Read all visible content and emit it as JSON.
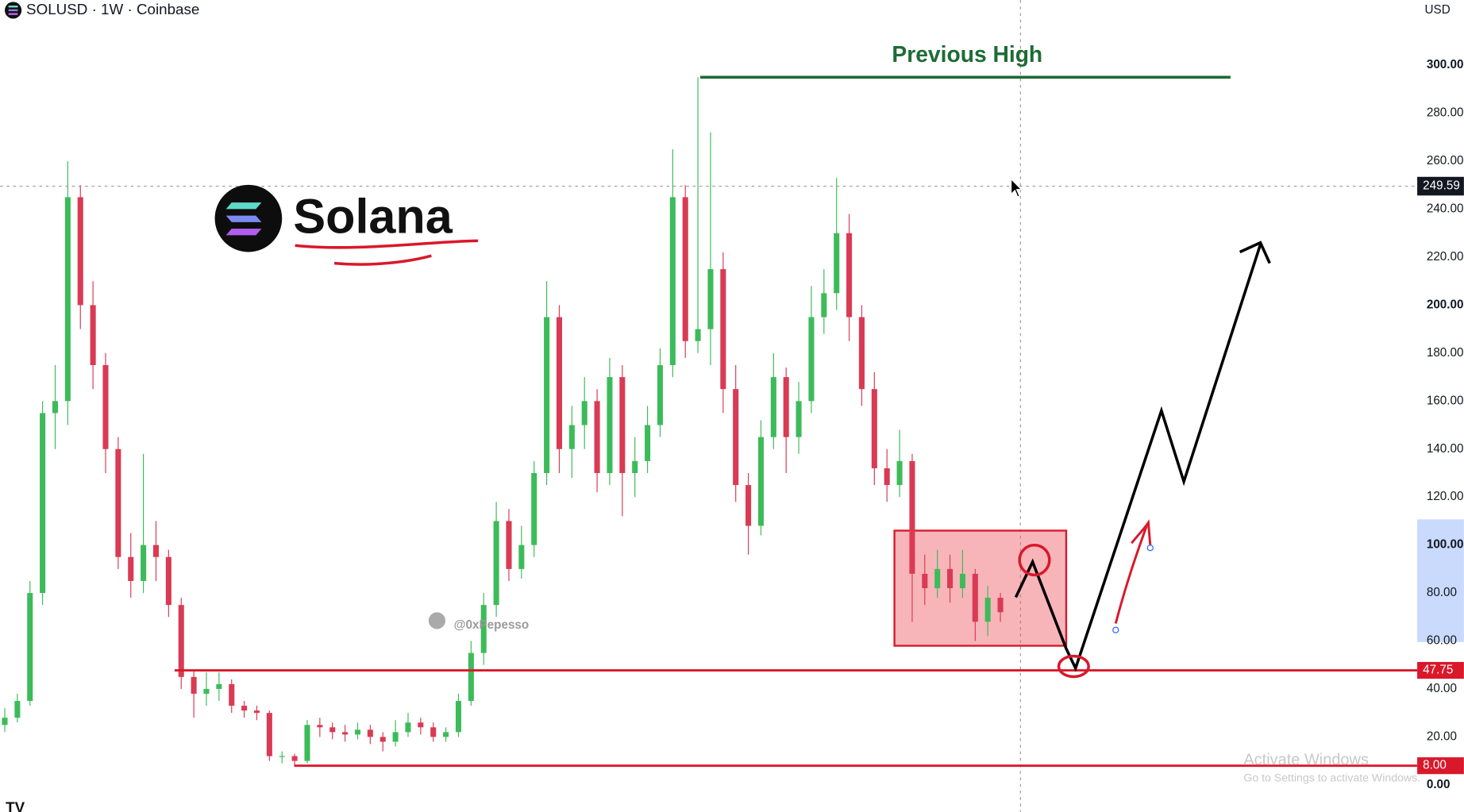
{
  "chart_data": {
    "type": "candlestick",
    "title": "SOLUSD · 1W · Coinbase",
    "currency": "USD",
    "ylim": [
      -11.3,
      327.2
    ],
    "yticks": [
      {
        "value": 0,
        "label": "0.00"
      },
      {
        "value": 20,
        "label": "20.00"
      },
      {
        "value": 40,
        "label": "40.00"
      },
      {
        "value": 60,
        "label": "60.00"
      },
      {
        "value": 80,
        "label": "80.00"
      },
      {
        "value": 100,
        "label": "100.00"
      },
      {
        "value": 120,
        "label": "120.00"
      },
      {
        "value": 140,
        "label": "140.00"
      },
      {
        "value": 160,
        "label": "160.00"
      },
      {
        "value": 180,
        "label": "180.00"
      },
      {
        "value": 200,
        "label": "200.00"
      },
      {
        "value": 220,
        "label": "220.00"
      },
      {
        "value": 240,
        "label": "240.00"
      },
      {
        "value": 260,
        "label": "260.00"
      },
      {
        "value": 280,
        "label": "280.00"
      },
      {
        "value": 300,
        "label": "300.00"
      }
    ],
    "up_color": "#3dbb5a",
    "down_color": "#d93a54",
    "open": [
      25,
      28,
      35,
      80,
      155,
      160,
      245,
      200,
      175,
      140,
      95,
      85,
      100,
      95,
      75,
      45,
      38,
      40,
      42,
      33,
      31,
      30,
      12,
      12,
      10,
      25,
      24,
      22,
      21,
      23,
      20,
      18,
      22,
      26,
      24,
      20,
      22,
      35,
      55,
      75,
      110,
      90,
      100,
      130,
      195,
      140,
      150,
      160,
      130,
      170,
      130,
      135,
      150,
      175,
      245,
      185,
      190,
      215,
      165,
      125,
      108,
      145,
      170,
      145,
      160,
      195,
      205,
      230,
      195,
      165,
      132,
      125,
      135,
      88,
      82,
      90,
      82,
      88,
      68,
      78
    ],
    "high": [
      32,
      38,
      85,
      160,
      175,
      260,
      250,
      210,
      180,
      145,
      105,
      138,
      110,
      98,
      78,
      48,
      47,
      47,
      44,
      35,
      33,
      31,
      14,
      13,
      27,
      28,
      26,
      25,
      26,
      25,
      22,
      27,
      30,
      28,
      26,
      24,
      38,
      60,
      80,
      118,
      115,
      108,
      135,
      210,
      200,
      158,
      170,
      165,
      178,
      175,
      145,
      158,
      182,
      265,
      250,
      295,
      272,
      222,
      175,
      130,
      152,
      180,
      174,
      168,
      208,
      215,
      253,
      238,
      200,
      172,
      140,
      148,
      138,
      96,
      98,
      96,
      98,
      90,
      83,
      80
    ],
    "low": [
      22,
      26,
      33,
      75,
      140,
      150,
      190,
      165,
      130,
      90,
      78,
      80,
      85,
      70,
      40,
      28,
      33,
      35,
      30,
      28,
      27,
      10,
      9,
      8,
      9,
      20,
      19,
      18,
      19,
      17,
      14,
      16,
      20,
      21,
      18,
      18,
      20,
      33,
      50,
      70,
      85,
      86,
      95,
      125,
      130,
      128,
      140,
      122,
      125,
      112,
      120,
      130,
      145,
      170,
      178,
      180,
      175,
      155,
      118,
      96,
      104,
      140,
      130,
      138,
      155,
      188,
      198,
      185,
      158,
      125,
      118,
      120,
      68,
      75,
      78,
      76,
      78,
      60,
      62,
      68
    ],
    "close": [
      28,
      35,
      80,
      155,
      160,
      245,
      200,
      175,
      140,
      95,
      85,
      100,
      95,
      75,
      45,
      38,
      40,
      42,
      33,
      31,
      30,
      12,
      12,
      10,
      25,
      24,
      22,
      21,
      23,
      20,
      18,
      22,
      26,
      24,
      20,
      22,
      35,
      55,
      75,
      110,
      90,
      100,
      130,
      195,
      140,
      150,
      160,
      130,
      170,
      130,
      135,
      150,
      175,
      245,
      185,
      190,
      215,
      165,
      125,
      108,
      145,
      170,
      145,
      160,
      195,
      205,
      230,
      195,
      165,
      132,
      125,
      135,
      88,
      82,
      90,
      82,
      88,
      68,
      78,
      72
    ],
    "levels": [
      {
        "value": 47.75,
        "label": "47.75",
        "color": "#d9182a"
      },
      {
        "value": 8,
        "label": "8.00",
        "color": "#d9182a"
      }
    ],
    "crosshair": {
      "value": 249.59,
      "label": "249.59"
    },
    "previous_high": {
      "label": "Previous High",
      "value": 295,
      "color": "#1e6b35"
    },
    "zone": {
      "low": 58,
      "high": 106
    },
    "logo_text": "Solana",
    "watermark": "@0xPepesso",
    "overlay": [
      "Activate Windows",
      "Go to Settings to activate Windows."
    ]
  }
}
